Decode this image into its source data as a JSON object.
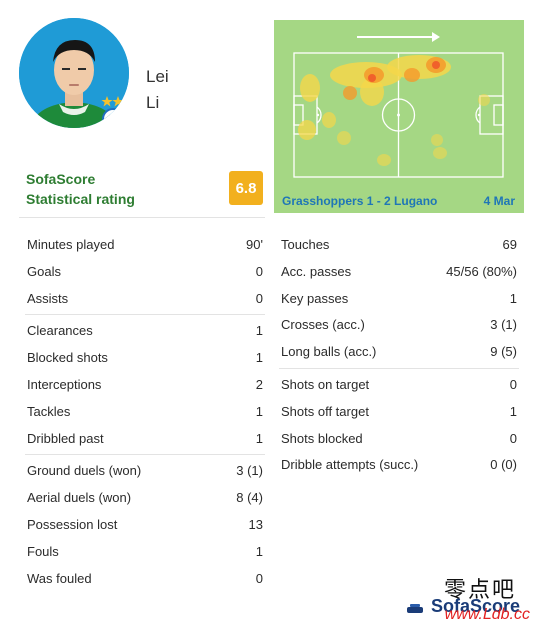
{
  "player": {
    "first_name": "Lei",
    "last_name": "Li"
  },
  "rating": {
    "label_line1": "SofaScore",
    "label_line2": "Statistical rating",
    "value": "6.8",
    "badge_color": "#f2b01e"
  },
  "heatmap": {
    "match": "Grasshoppers 1 - 2 Lugano",
    "date": "4 Mar",
    "pitch_color": "#a5d784",
    "heat_color": "#f5d74a"
  },
  "stats": {
    "left_groups": [
      [
        {
          "label": "Minutes played",
          "value": "90'"
        },
        {
          "label": "Goals",
          "value": "0"
        },
        {
          "label": "Assists",
          "value": "0"
        }
      ],
      [
        {
          "label": "Clearances",
          "value": "1"
        },
        {
          "label": "Blocked shots",
          "value": "1"
        },
        {
          "label": "Interceptions",
          "value": "2"
        },
        {
          "label": "Tackles",
          "value": "1"
        },
        {
          "label": "Dribbled past",
          "value": "1"
        }
      ],
      [
        {
          "label": "Ground duels (won)",
          "value": "3 (1)"
        },
        {
          "label": "Aerial duels (won)",
          "value": "8 (4)"
        },
        {
          "label": "Possession lost",
          "value": "13"
        },
        {
          "label": "Fouls",
          "value": "1"
        },
        {
          "label": "Was fouled",
          "value": "0"
        }
      ]
    ],
    "right_groups": [
      [
        {
          "label": "Touches",
          "value": "69"
        },
        {
          "label": "Acc. passes",
          "value": "45/56 (80%)"
        },
        {
          "label": "Key passes",
          "value": "1"
        },
        {
          "label": "Crosses (acc.)",
          "value": "3 (1)"
        },
        {
          "label": "Long balls (acc.)",
          "value": "9 (5)"
        }
      ],
      [
        {
          "label": "Shots on target",
          "value": "0"
        },
        {
          "label": "Shots off target",
          "value": "1"
        },
        {
          "label": "Shots blocked",
          "value": "0"
        },
        {
          "label": "Dribble attempts (succ.)",
          "value": "0 (0)"
        }
      ]
    ]
  },
  "watermark": {
    "chinese": "零点吧",
    "brand": "SofaScore",
    "url": "www.Ldb.cc"
  }
}
